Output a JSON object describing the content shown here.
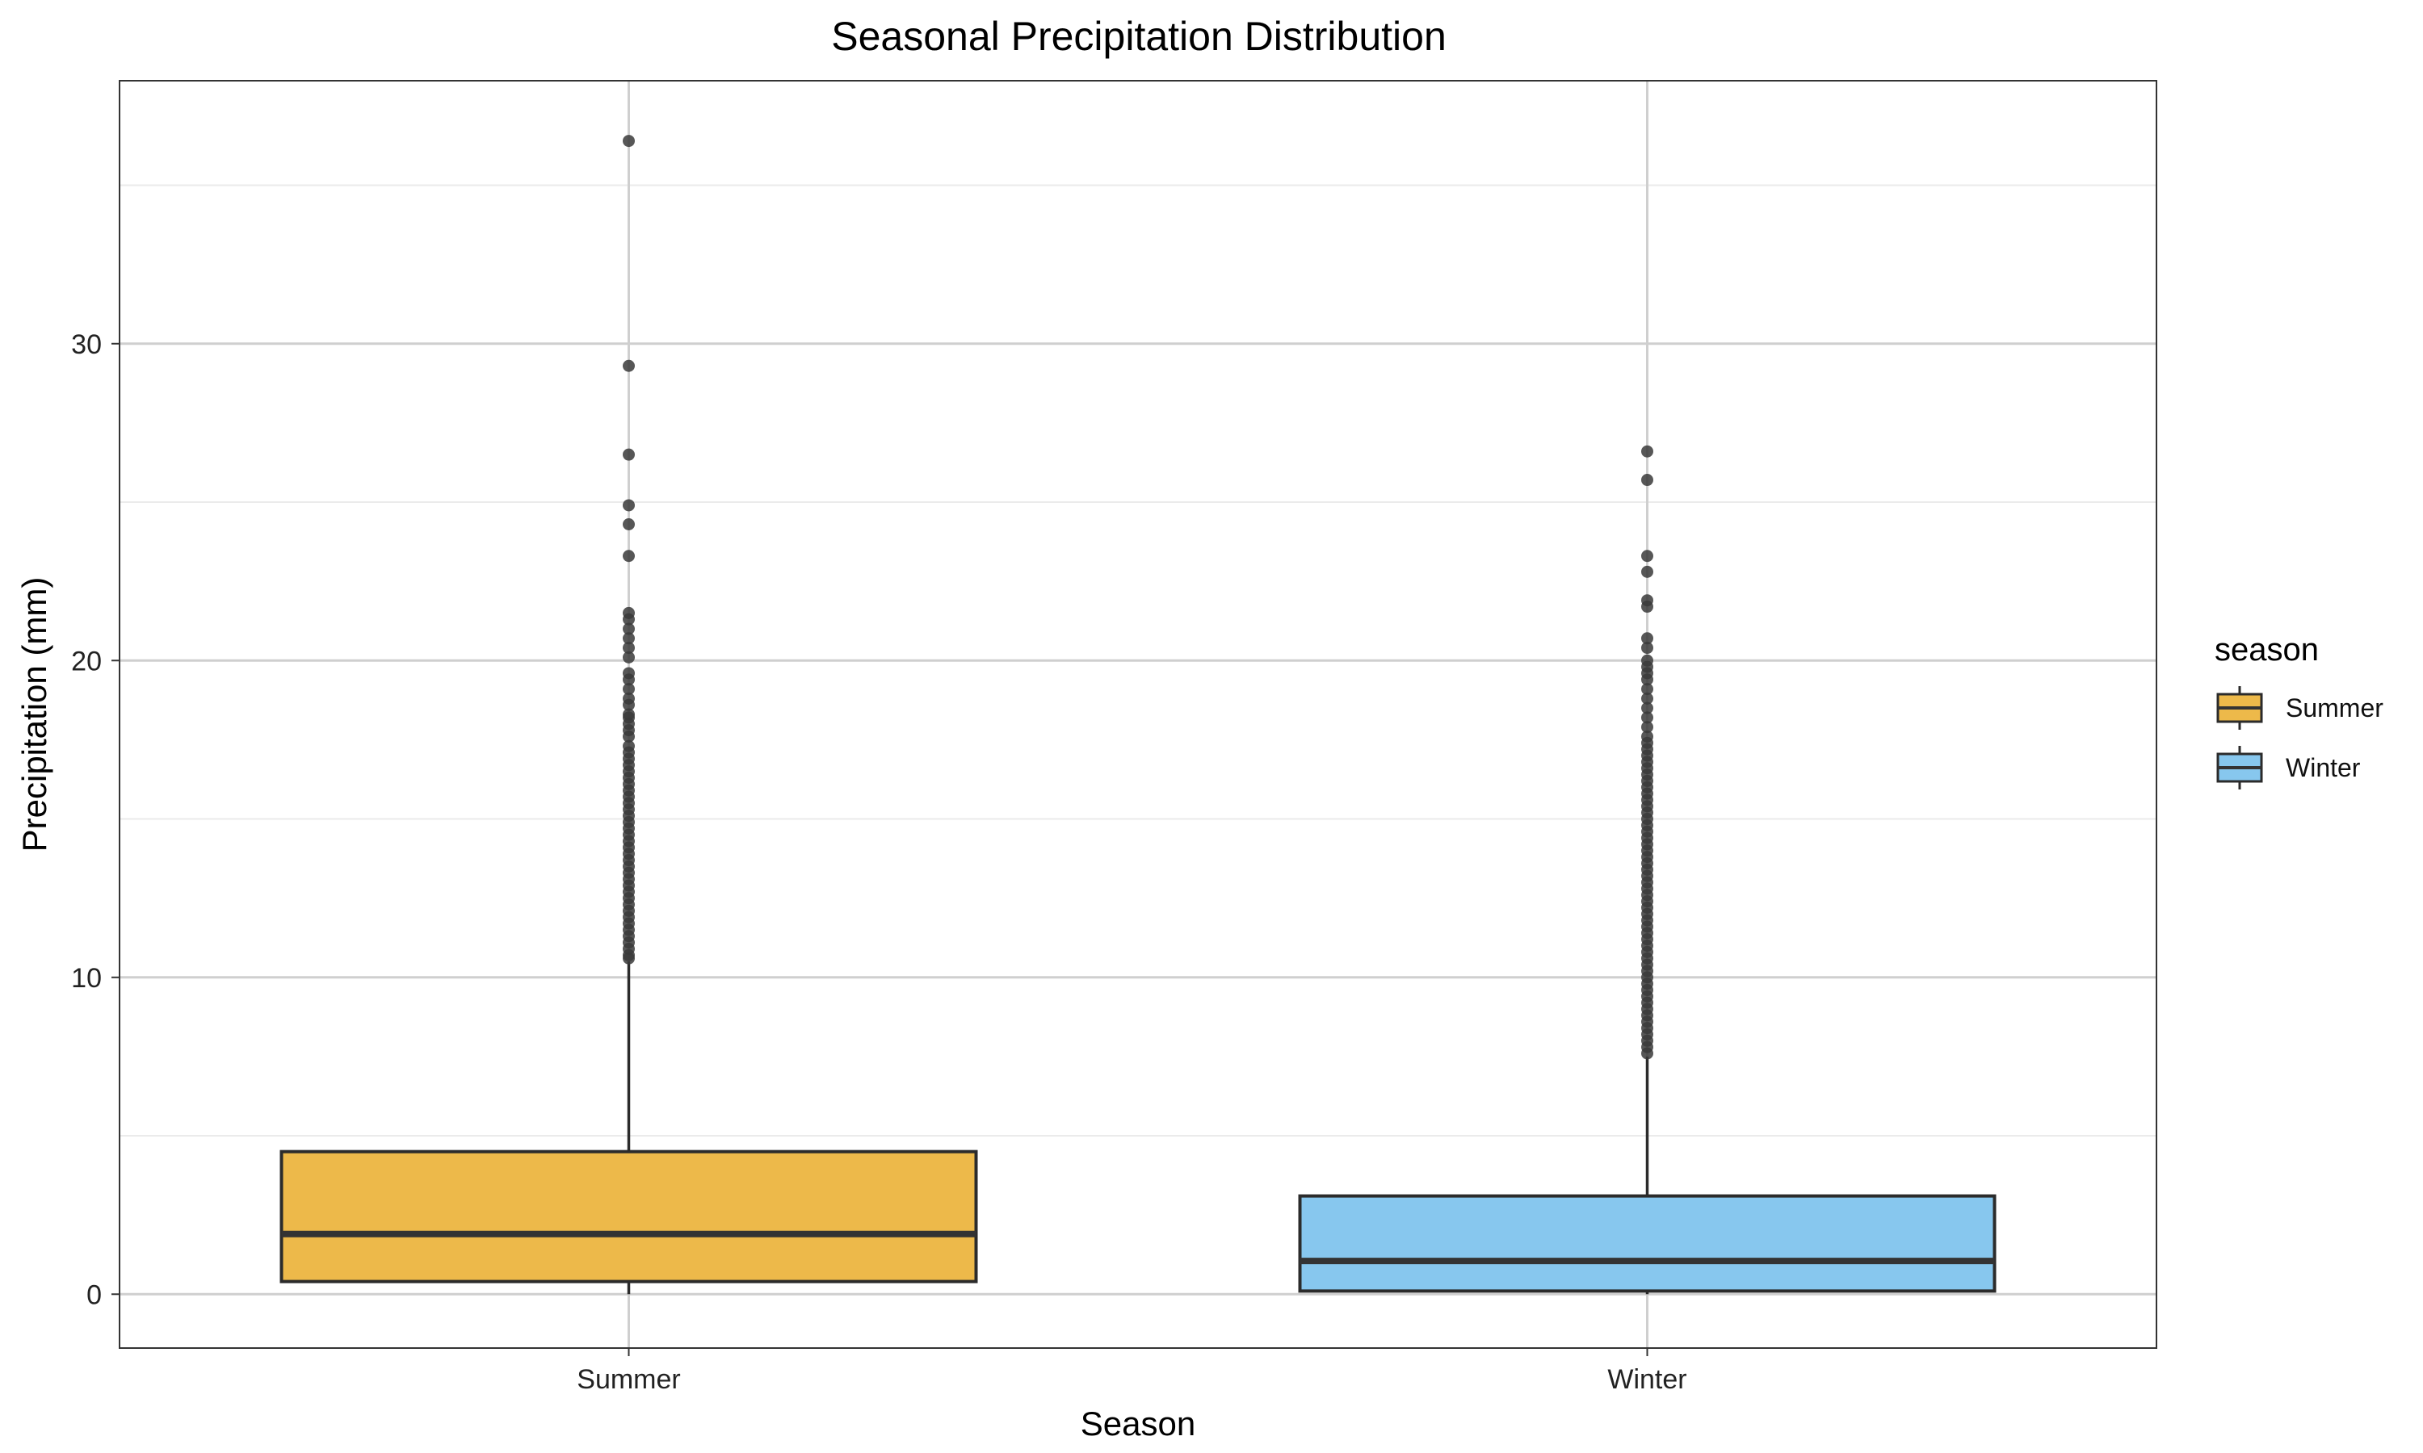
{
  "chart_data": {
    "type": "boxplot",
    "title": "Seasonal Precipitation Distribution",
    "xlabel": "Season",
    "ylabel": "Precipitation (mm)",
    "categories": [
      "Summer",
      "Winter"
    ],
    "ylim": [
      -1.7,
      38.3
    ],
    "yticks": [
      0,
      10,
      20,
      30
    ],
    "grid": true,
    "legend": {
      "title": "season",
      "position": "right",
      "entries": [
        "Summer",
        "Winter"
      ]
    },
    "colors": {
      "Summer": "#EDB94A",
      "Winter": "#87C7EE",
      "outline": "#2b2b2b",
      "outlier": "#3a3a3a"
    },
    "boxes": [
      {
        "name": "Summer",
        "min": 0,
        "q1": 0.4,
        "median": 1.9,
        "q3": 4.5,
        "whisker_high": 10.5,
        "outliers": [
          36.4,
          29.3,
          26.5,
          24.9,
          24.3,
          23.3,
          21.5,
          21.3,
          21.0,
          20.7,
          20.4,
          20.1,
          19.6,
          19.4,
          19.1,
          18.8,
          18.6,
          18.3,
          18.2,
          18.0,
          17.8,
          17.6,
          17.3,
          17.1,
          16.9,
          16.7,
          16.5,
          16.3,
          16.1,
          15.9,
          15.7,
          15.5,
          15.3,
          15.1,
          14.9,
          14.7,
          14.5,
          14.3,
          14.1,
          13.9,
          13.7,
          13.5,
          13.3,
          13.1,
          12.9,
          12.7,
          12.5,
          12.3,
          12.1,
          11.9,
          11.7,
          11.5,
          11.3,
          11.1,
          10.9,
          10.7,
          10.6
        ]
      },
      {
        "name": "Winter",
        "min": 0,
        "q1": 0.1,
        "median": 1.05,
        "q3": 3.1,
        "whisker_high": 7.5,
        "outliers": [
          26.6,
          25.7,
          23.3,
          22.8,
          21.9,
          21.7,
          20.7,
          20.4,
          20.0,
          19.8,
          19.6,
          19.4,
          19.1,
          18.8,
          18.5,
          18.2,
          17.9,
          17.6,
          17.4,
          17.2,
          17.0,
          16.8,
          16.6,
          16.4,
          16.2,
          16.0,
          15.8,
          15.6,
          15.4,
          15.2,
          15.0,
          14.8,
          14.6,
          14.4,
          14.2,
          14.0,
          13.8,
          13.6,
          13.4,
          13.2,
          13.0,
          12.8,
          12.6,
          12.4,
          12.2,
          12.0,
          11.8,
          11.6,
          11.4,
          11.2,
          11.0,
          10.8,
          10.6,
          10.4,
          10.2,
          10.0,
          9.8,
          9.6,
          9.4,
          9.2,
          9.0,
          8.8,
          8.6,
          8.4,
          8.2,
          8.0,
          7.8,
          7.6
        ]
      }
    ]
  }
}
